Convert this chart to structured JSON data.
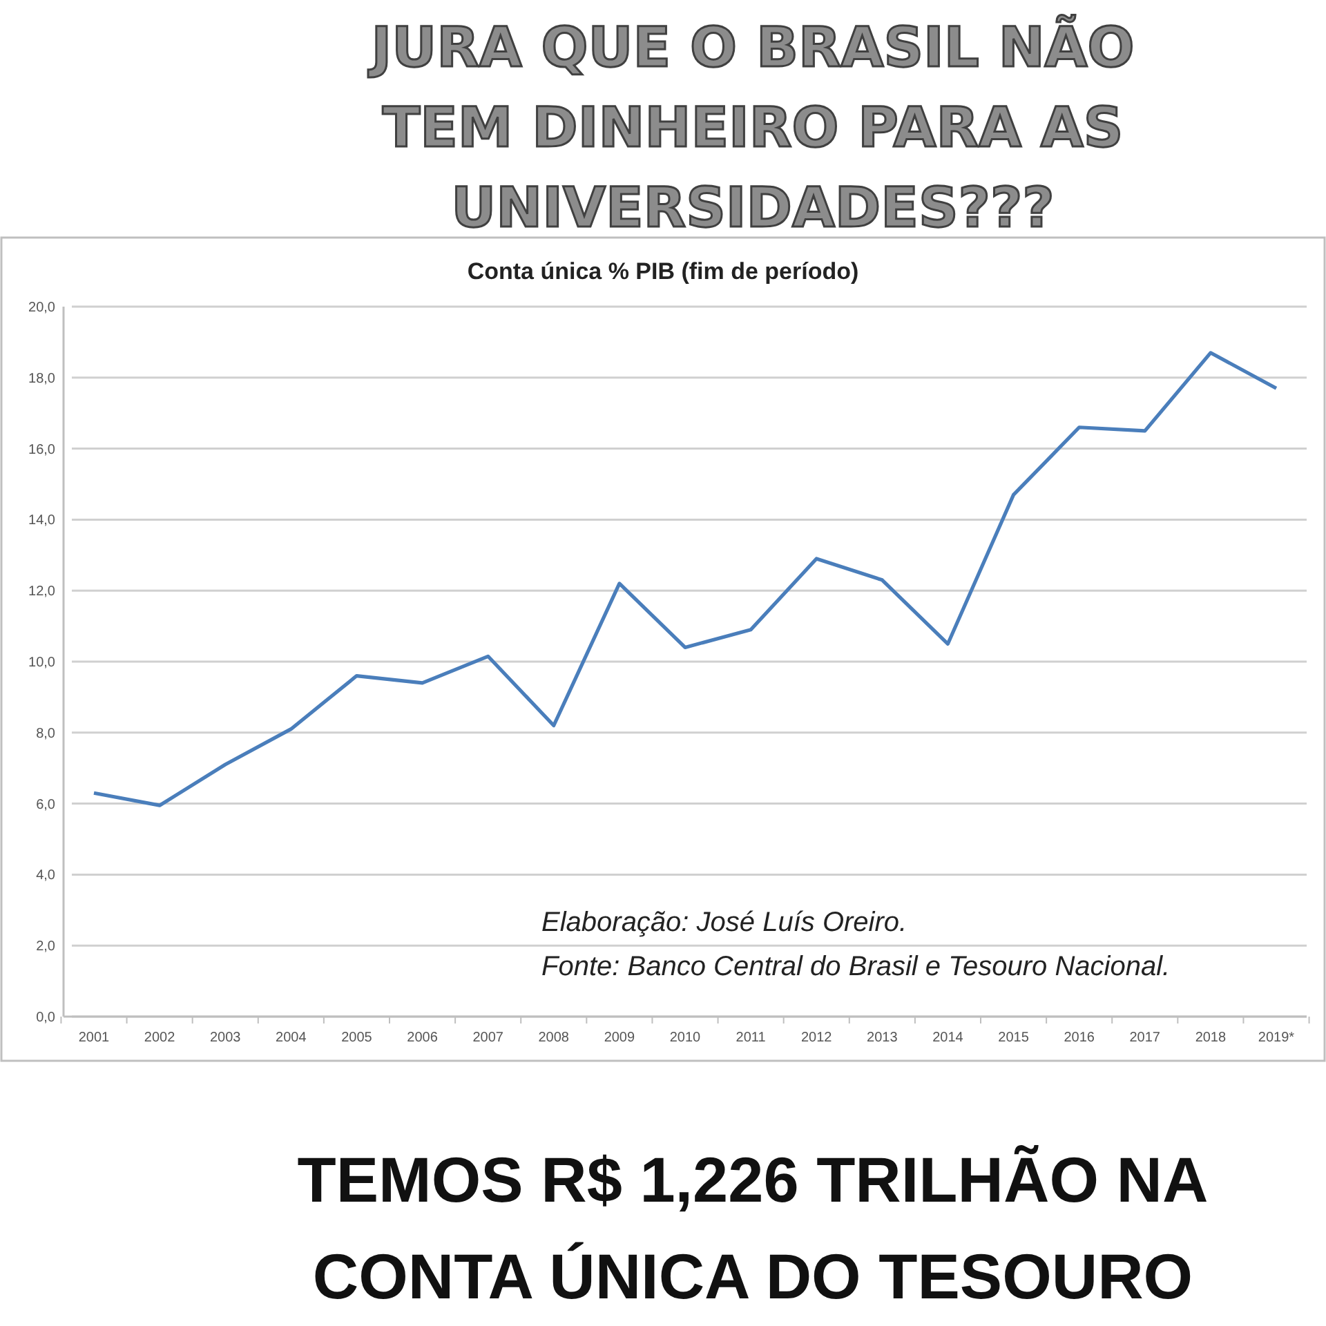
{
  "chart_data": {
    "type": "line",
    "title": "JURA QUE O BRASIL NÃO TEM DINHEIRO PARA AS UNIVERSIDADES???",
    "subtitle": "Conta única % PIB (fim de período)",
    "categories": [
      "2001",
      "2002",
      "2003",
      "2004",
      "2005",
      "2006",
      "2007",
      "2008",
      "2009",
      "2010",
      "2011",
      "2012",
      "2013",
      "2014",
      "2015",
      "2016",
      "2017",
      "2018",
      "2019*"
    ],
    "series": [
      {
        "color": "#4a7ebb",
        "values": [
          6.3,
          5.95,
          7.1,
          8.1,
          9.6,
          9.4,
          10.15,
          8.2,
          12.2,
          10.4,
          10.9,
          12.9,
          12.3,
          10.5,
          14.7,
          16.6,
          16.5,
          18.7,
          17.7
        ]
      }
    ],
    "ylim": [
      0,
      20
    ],
    "yticks": [
      {
        "value": 0,
        "label": "0,0"
      },
      {
        "value": 2,
        "label": "2,0"
      },
      {
        "value": 4,
        "label": "4,0"
      },
      {
        "value": 6,
        "label": "6,0"
      },
      {
        "value": 8,
        "label": "8,0"
      },
      {
        "value": 10,
        "label": "10,0"
      },
      {
        "value": 12,
        "label": "12,0"
      },
      {
        "value": 14,
        "label": "14,0"
      },
      {
        "value": 16,
        "label": "16,0"
      },
      {
        "value": 18,
        "label": "18,0"
      },
      {
        "value": 20,
        "label": "20,0"
      }
    ],
    "grid": "y",
    "marker": "none",
    "line_style": "solid",
    "annotations": [
      "Elaboração:  José Luís Oreiro.",
      "Fonte: Banco Central do Brasil e Tesouro Nacional.",
      "TEMOS R$ 1,226 TRILHÃO NA",
      "CONTA ÚNICA DO TESOURO"
    ]
  }
}
